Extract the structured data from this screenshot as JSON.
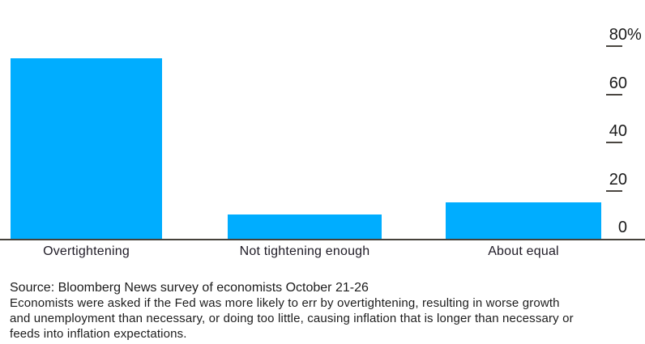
{
  "chart_data": {
    "type": "bar",
    "title": "",
    "categories": [
      "Overtightening",
      "Not tightening enough",
      "About equal"
    ],
    "values": [
      75,
      10,
      15
    ],
    "value_unit": "%",
    "xlabel": "",
    "ylabel": "",
    "ylim": [
      0,
      80
    ],
    "yticks": [
      0,
      20,
      40,
      60,
      80
    ],
    "ytick_labels": [
      "0",
      "20",
      "40",
      "60",
      "80%"
    ],
    "yaxis_side": "right",
    "grid": "off",
    "legend": "none",
    "bar_color": "#00adff",
    "axis_color": "#45413b",
    "tick_color": "#4a4641",
    "tick_label_color": "#1a1a1a",
    "category_label_color": "#1f1b26"
  },
  "footer": {
    "source": "Source: Bloomberg News survey of economists October 21-26",
    "note_lines": [
      "Economists were asked if the Fed was more likely to err by overtightening, resulting in worse growth",
      "and unemployment than necessary, or doing too little, causing inflation that is longer than necessary or",
      "feeds into inflation expectations."
    ]
  }
}
